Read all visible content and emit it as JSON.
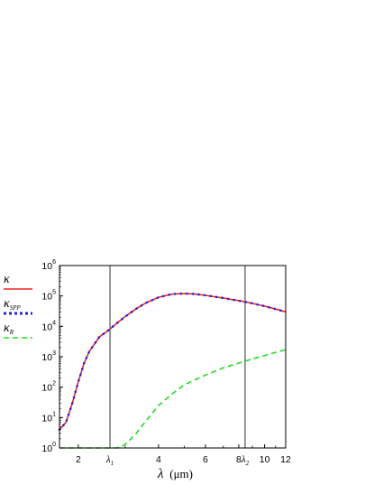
{
  "chart_data": {
    "type": "line",
    "xscale": "log",
    "yscale": "log",
    "xlabel": {
      "symbol": "λ",
      "unit": "(μm)"
    },
    "xlim": [
      1.7,
      12
    ],
    "ylim": [
      1,
      1000000
    ],
    "x_ticks": [
      {
        "value": 2,
        "label": "2"
      },
      {
        "value": 4,
        "label": "4"
      },
      {
        "value": 6,
        "label": "6"
      },
      {
        "value": 8,
        "label": "8"
      },
      {
        "value": 10,
        "label": "10"
      },
      {
        "value": 12,
        "label": "12"
      }
    ],
    "y_ticks": [
      {
        "value": 1,
        "base": "10",
        "exp": "0"
      },
      {
        "value": 10,
        "base": "10",
        "exp": "1"
      },
      {
        "value": 100,
        "base": "10",
        "exp": "2"
      },
      {
        "value": 1000,
        "base": "10",
        "exp": "3"
      },
      {
        "value": 10000,
        "base": "10",
        "exp": "4"
      },
      {
        "value": 100000,
        "base": "10",
        "exp": "5"
      },
      {
        "value": 1000000,
        "base": "10",
        "exp": "6"
      }
    ],
    "vlines": [
      {
        "x": 2.63,
        "base": "λ",
        "sub": "1"
      },
      {
        "x": 8.45,
        "base": "λ",
        "sub": "2"
      }
    ],
    "legend": {
      "placement": "left-outside"
    },
    "series": [
      {
        "name_base": "κ",
        "name_sub": "",
        "color": "#ee2222",
        "style": "solid",
        "x": [
          1.7,
          1.8,
          1.9,
          2.0,
          2.1,
          2.2,
          2.4,
          2.6,
          2.8,
          3.0,
          3.3,
          3.6,
          4.0,
          4.5,
          5.0,
          5.5,
          6.0,
          7.0,
          8.0,
          9.0,
          10.0,
          11.0,
          12.0
        ],
        "y": [
          4,
          7,
          30,
          150,
          600,
          1500,
          4500,
          7500,
          13000,
          21000,
          38000,
          60000,
          90000,
          115000,
          120000,
          115000,
          105000,
          85000,
          70000,
          57000,
          46000,
          37000,
          30000
        ]
      },
      {
        "name_base": "κ",
        "name_sub": "SPP",
        "color": "#2222dd",
        "style": "dotted",
        "x": [
          1.7,
          1.8,
          1.9,
          2.0,
          2.1,
          2.2,
          2.4,
          2.6,
          2.8,
          3.0,
          3.3,
          3.6,
          4.0,
          4.5,
          5.0,
          5.5,
          6.0,
          7.0,
          8.0,
          9.0,
          10.0,
          11.0,
          12.0
        ],
        "y": [
          4,
          7,
          30,
          150,
          600,
          1500,
          4500,
          7500,
          13000,
          21000,
          38000,
          60000,
          90000,
          115000,
          120000,
          115000,
          105000,
          85000,
          70000,
          57000,
          46000,
          37000,
          30000
        ]
      },
      {
        "name_base": "κ",
        "name_sub": "R",
        "color": "#22dd22",
        "style": "dashed",
        "x": [
          1.7,
          2.0,
          2.5,
          2.8,
          3.0,
          3.3,
          3.6,
          4.0,
          4.5,
          5.0,
          6.0,
          7.0,
          8.0,
          9.0,
          10.0,
          11.0,
          12.0
        ],
        "y": [
          1,
          1,
          1,
          1,
          1.3,
          3,
          8,
          25,
          60,
          120,
          250,
          430,
          620,
          850,
          1100,
          1400,
          1700
        ]
      }
    ]
  }
}
